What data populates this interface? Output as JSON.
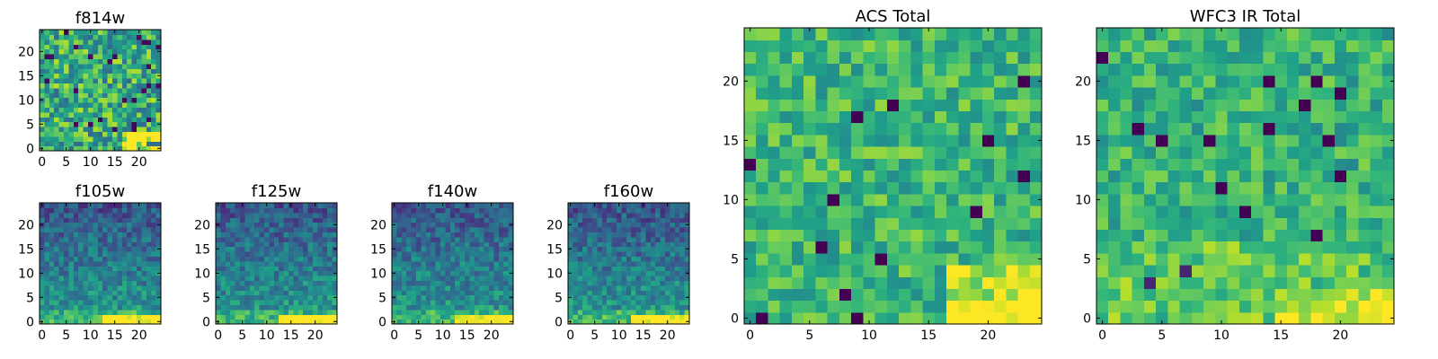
{
  "figure": {
    "description_free": true
  },
  "chart_data": [
    {
      "id": "f814w",
      "type": "heatmap",
      "title": "f814w",
      "grid": [
        25,
        25
      ],
      "xlim": [
        -0.5,
        24.5
      ],
      "ylim": [
        -0.5,
        24.5
      ],
      "xticks": [
        0,
        5,
        10,
        15,
        20
      ],
      "yticks": [
        0,
        5,
        10,
        15,
        20
      ],
      "colormap": "viridis",
      "pattern": "noisy-green-bright-bottom-right"
    },
    {
      "id": "f105w",
      "type": "heatmap",
      "title": "f105w",
      "grid": [
        25,
        25
      ],
      "xlim": [
        -0.5,
        24.5
      ],
      "ylim": [
        -0.5,
        24.5
      ],
      "xticks": [
        0,
        5,
        10,
        15,
        20
      ],
      "yticks": [
        0,
        5,
        10,
        15,
        20
      ],
      "colormap": "viridis",
      "pattern": "blue-top-green-bottom"
    },
    {
      "id": "f125w",
      "type": "heatmap",
      "title": "f125w",
      "grid": [
        25,
        25
      ],
      "xlim": [
        -0.5,
        24.5
      ],
      "ylim": [
        -0.5,
        24.5
      ],
      "xticks": [
        0,
        5,
        10,
        15,
        20
      ],
      "yticks": [
        0,
        5,
        10,
        15,
        20
      ],
      "colormap": "viridis",
      "pattern": "blue-top-green-bottom"
    },
    {
      "id": "f140w",
      "type": "heatmap",
      "title": "f140w",
      "grid": [
        25,
        25
      ],
      "xlim": [
        -0.5,
        24.5
      ],
      "ylim": [
        -0.5,
        24.5
      ],
      "xticks": [
        0,
        5,
        10,
        15,
        20
      ],
      "yticks": [
        0,
        5,
        10,
        15,
        20
      ],
      "colormap": "viridis",
      "pattern": "blue-top-green-bottom"
    },
    {
      "id": "f160w",
      "type": "heatmap",
      "title": "f160w",
      "grid": [
        25,
        25
      ],
      "xlim": [
        -0.5,
        24.5
      ],
      "ylim": [
        -0.5,
        24.5
      ],
      "xticks": [
        0,
        5,
        10,
        15,
        20
      ],
      "yticks": [
        0,
        5,
        10,
        15,
        20
      ],
      "colormap": "viridis",
      "pattern": "blue-top-green-bottom"
    },
    {
      "id": "acs",
      "type": "heatmap",
      "title": "ACS Total",
      "grid": [
        25,
        25
      ],
      "xlim": [
        -0.5,
        24.5
      ],
      "ylim": [
        -0.5,
        24.5
      ],
      "xticks": [
        0,
        5,
        10,
        15,
        20
      ],
      "yticks": [
        0,
        5,
        10,
        15,
        20
      ],
      "colormap": "viridis",
      "pattern": "green-bright-bottom-right"
    },
    {
      "id": "wfc3",
      "type": "heatmap",
      "title": "WFC3 IR Total",
      "grid": [
        25,
        25
      ],
      "xlim": [
        -0.5,
        24.5
      ],
      "ylim": [
        -0.5,
        24.5
      ],
      "xticks": [
        0,
        5,
        10,
        15,
        20
      ],
      "yticks": [
        0,
        5,
        10,
        15,
        20
      ],
      "colormap": "viridis",
      "pattern": "green-bright-bottom"
    }
  ]
}
